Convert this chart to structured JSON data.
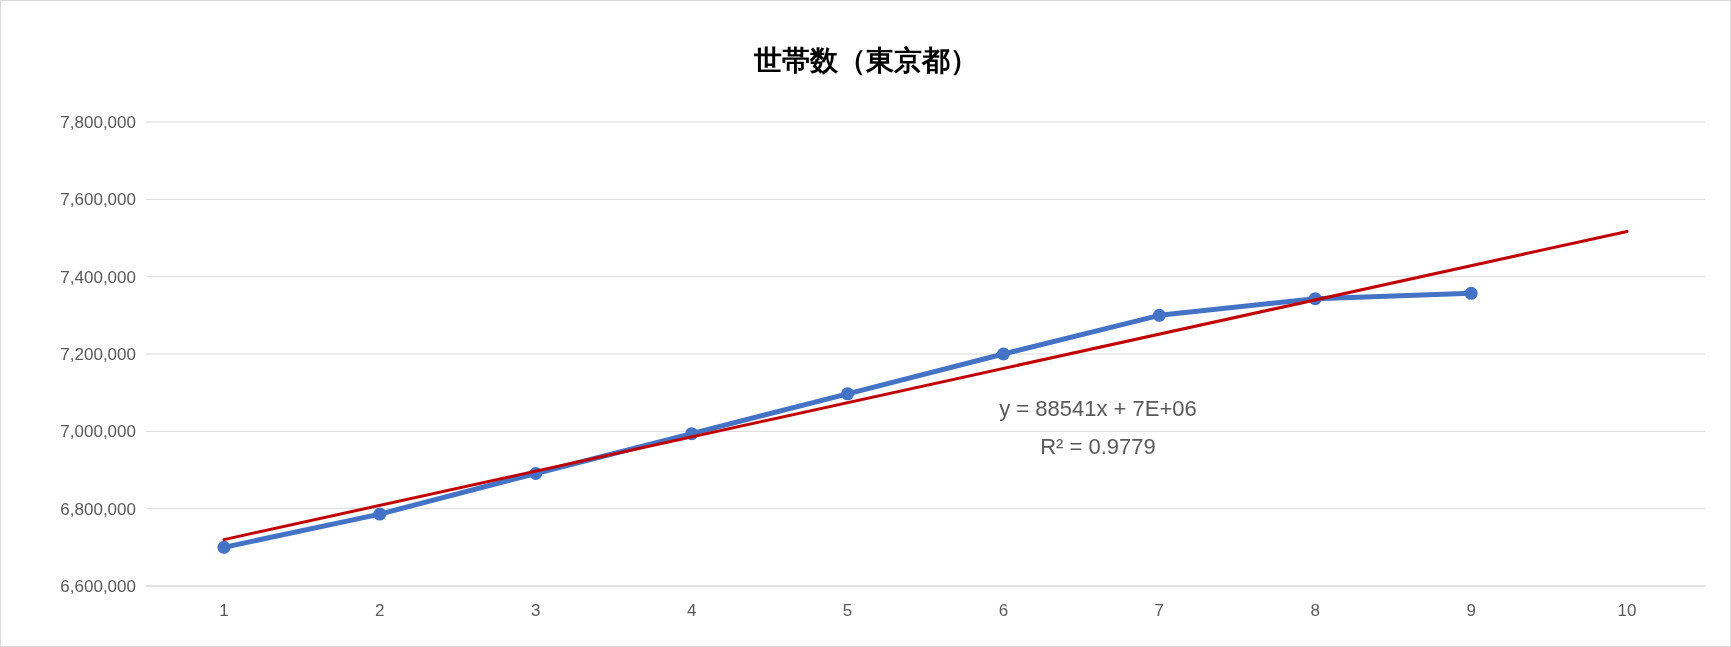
{
  "chart_data": {
    "type": "line",
    "title": "世帯数（東京都）",
    "x": [
      1,
      2,
      3,
      4,
      5,
      6,
      7,
      8,
      9
    ],
    "series": [
      {
        "color": "#4472c4",
        "values": [
          6700000,
          6786000,
          6891000,
          6994000,
          7097000,
          7200000,
          7300000,
          7343000,
          7357000
        ],
        "marker": "circle"
      },
      {
        "type": "line",
        "color": "#c00000",
        "x": [
          1,
          10
        ],
        "values": [
          6720000,
          7517000
        ],
        "marker": "none"
      }
    ],
    "xlim": [
      0.5,
      10.5
    ],
    "xticks": [
      1,
      2,
      3,
      4,
      5,
      6,
      7,
      8,
      9,
      10
    ],
    "ylim": [
      6600000,
      7800000
    ],
    "yticks": [
      {
        "value": 6600000,
        "label": "6,600,000"
      },
      {
        "value": 6800000,
        "label": "6,800,000"
      },
      {
        "value": 7000000,
        "label": "7,000,000"
      },
      {
        "value": 7200000,
        "label": "7,200,000"
      },
      {
        "value": 7400000,
        "label": "7,400,000"
      },
      {
        "value": 7600000,
        "label": "7,600,000"
      },
      {
        "value": 7800000,
        "label": "7,800,000"
      }
    ],
    "grid": "y",
    "annotations": [
      "y = 88541x + 7E+06",
      "R² = 0.9779"
    ]
  }
}
